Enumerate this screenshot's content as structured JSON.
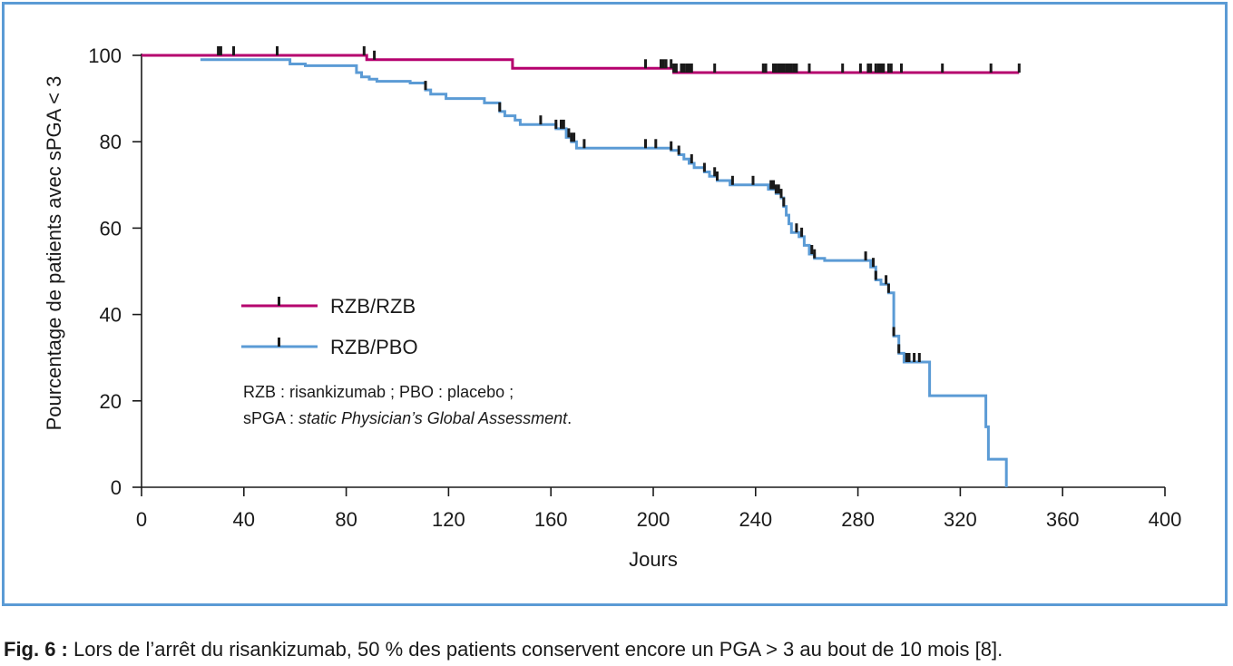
{
  "chart_data": {
    "type": "line",
    "xlabel": "Jours",
    "ylabel": "Pourcentage de patients avec sPGA < 3",
    "xlim": [
      0,
      400
    ],
    "ylim": [
      0,
      100
    ],
    "x_ticks": [
      0,
      40,
      80,
      120,
      160,
      200,
      240,
      280,
      320,
      360,
      400
    ],
    "y_ticks": [
      0,
      20,
      40,
      60,
      80,
      100
    ],
    "grid": false,
    "legend_position": "center-left",
    "series": [
      {
        "name": "RZB/RZB",
        "color": "#b5006e",
        "steps": [
          [
            0,
            100
          ],
          [
            88,
            100
          ],
          [
            88,
            99
          ],
          [
            145,
            99
          ],
          [
            145,
            97
          ],
          [
            208,
            97
          ],
          [
            208,
            96
          ],
          [
            343,
            96
          ]
        ],
        "censored": [
          30,
          31,
          36,
          53,
          87,
          91,
          197,
          203,
          204,
          205,
          207,
          208,
          209,
          211,
          212,
          213,
          214,
          215,
          224,
          243,
          244,
          247,
          248,
          249,
          250,
          251,
          252,
          253,
          254,
          255,
          256,
          261,
          274,
          281,
          284,
          285,
          287,
          288,
          289,
          290,
          292,
          293,
          297,
          313,
          332,
          343
        ]
      },
      {
        "name": "RZB/PBO",
        "color": "#5b9bd5",
        "steps": [
          [
            23,
            99
          ],
          [
            58,
            99
          ],
          [
            58,
            98
          ],
          [
            64,
            98
          ],
          [
            64,
            97.6
          ],
          [
            84,
            97.6
          ],
          [
            84,
            96
          ],
          [
            86,
            96
          ],
          [
            86,
            95
          ],
          [
            89,
            95
          ],
          [
            89,
            94.5
          ],
          [
            92,
            94.5
          ],
          [
            92,
            94
          ],
          [
            105,
            94
          ],
          [
            105,
            93.6
          ],
          [
            111,
            93.6
          ],
          [
            111,
            92
          ],
          [
            113,
            92
          ],
          [
            113,
            91
          ],
          [
            119,
            91
          ],
          [
            119,
            90
          ],
          [
            134,
            90
          ],
          [
            134,
            89
          ],
          [
            140,
            89
          ],
          [
            140,
            87
          ],
          [
            142,
            87
          ],
          [
            142,
            86
          ],
          [
            146,
            86
          ],
          [
            146,
            85
          ],
          [
            148,
            85
          ],
          [
            148,
            84
          ],
          [
            162,
            84
          ],
          [
            162,
            83
          ],
          [
            166,
            83
          ],
          [
            166,
            81
          ],
          [
            168,
            81
          ],
          [
            168,
            80
          ],
          [
            170,
            80
          ],
          [
            170,
            78.5
          ],
          [
            207,
            78.5
          ],
          [
            207,
            78
          ],
          [
            210,
            78
          ],
          [
            210,
            77
          ],
          [
            212,
            77
          ],
          [
            212,
            76
          ],
          [
            214,
            76
          ],
          [
            214,
            75
          ],
          [
            216,
            75
          ],
          [
            216,
            74
          ],
          [
            220,
            74
          ],
          [
            220,
            73
          ],
          [
            222,
            73
          ],
          [
            222,
            72
          ],
          [
            225,
            72
          ],
          [
            225,
            71
          ],
          [
            230,
            71
          ],
          [
            230,
            70
          ],
          [
            245,
            70
          ],
          [
            245,
            69
          ],
          [
            248,
            69
          ],
          [
            248,
            68
          ],
          [
            250,
            68
          ],
          [
            250,
            67
          ],
          [
            251,
            67
          ],
          [
            251,
            65
          ],
          [
            252,
            65
          ],
          [
            252,
            63
          ],
          [
            253,
            63
          ],
          [
            253,
            61
          ],
          [
            254,
            61
          ],
          [
            254,
            59
          ],
          [
            257,
            59
          ],
          [
            257,
            58
          ],
          [
            259,
            58
          ],
          [
            259,
            56
          ],
          [
            261,
            56
          ],
          [
            261,
            54
          ],
          [
            263,
            54
          ],
          [
            263,
            53
          ],
          [
            267,
            53
          ],
          [
            267,
            52.5
          ],
          [
            285,
            52.5
          ],
          [
            285,
            51
          ],
          [
            287,
            51
          ],
          [
            287,
            48
          ],
          [
            289,
            48
          ],
          [
            289,
            47
          ],
          [
            292,
            47
          ],
          [
            292,
            45
          ],
          [
            294,
            45
          ],
          [
            294,
            35
          ],
          [
            296,
            35
          ],
          [
            296,
            31
          ],
          [
            298,
            31
          ],
          [
            298,
            29
          ],
          [
            308,
            29
          ],
          [
            308,
            21.2
          ],
          [
            330,
            21.2
          ],
          [
            330,
            14
          ],
          [
            331,
            14
          ],
          [
            331,
            6.5
          ],
          [
            338,
            6.5
          ],
          [
            338,
            0
          ]
        ],
        "censored": [
          111,
          140,
          156,
          162,
          164,
          165,
          167,
          168,
          169,
          173,
          197,
          201,
          207,
          210,
          215,
          220,
          224,
          225,
          231,
          239,
          246,
          247,
          248,
          249,
          250,
          251,
          256,
          258,
          262,
          263,
          283,
          286,
          287,
          291,
          292,
          294,
          296,
          299,
          300,
          302,
          304
        ]
      }
    ]
  },
  "legend_items": [
    {
      "label": "RZB/RZB"
    },
    {
      "label": "RZB/PBO"
    }
  ],
  "note": {
    "line1": "RZB : risankizumab ; PBO : placebo ;",
    "line2_prefix": "sPGA : ",
    "line2_italic": "static Physician’s Global Assessment",
    "line2_suffix": "."
  },
  "caption": {
    "label": "Fig. 6 :",
    "text": " Lors de l’arrêt du risankizumab, 50 % des patients conservent encore un PGA > 3 au bout de 10 mois [8]."
  }
}
